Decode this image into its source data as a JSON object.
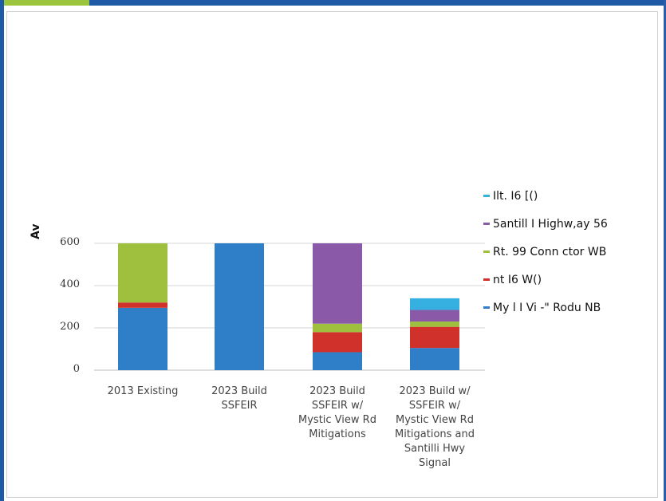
{
  "chart_data": {
    "type": "bar",
    "stacked": true,
    "title": "",
    "ylabel_fragment": "Av",
    "ylim": [
      0,
      600
    ],
    "yticks": [
      "0",
      "200",
      "400",
      "600"
    ],
    "ytick_values": [
      0,
      200,
      400,
      600
    ],
    "grid": true,
    "legend_position": "right",
    "categories": [
      [
        "2013 Existing"
      ],
      [
        "2023 Build",
        "SSFEIR"
      ],
      [
        "2023 Build",
        "SSFEIR w/",
        "Mystic View Rd",
        "Mitigations"
      ],
      [
        "2023 Build w/",
        "SSFEIR w/",
        "Mystic View Rd",
        "Mitigations and",
        "Santilli Hwy",
        "Signal"
      ]
    ],
    "series": [
      {
        "name": "My  l I Vi -\" Rodu  NB",
        "color": "#2f7fc8",
        "values": [
          295,
          600,
          85,
          105
        ]
      },
      {
        "name": "nt   I6 W()",
        "color": "#d1312b",
        "values": [
          25,
          0,
          95,
          100
        ]
      },
      {
        "name": "Rt. 99 Conn ctor WB",
        "color": "#9fc03e",
        "values": [
          280,
          0,
          40,
          25
        ]
      },
      {
        "name": "5antill I Highw,ay 56",
        "color": "#8a5aa8",
        "values": [
          0,
          0,
          380,
          55
        ]
      },
      {
        "name": "Ilt. I6 [()",
        "color": "#36b0e0",
        "values": [
          0,
          0,
          0,
          55
        ]
      }
    ]
  }
}
